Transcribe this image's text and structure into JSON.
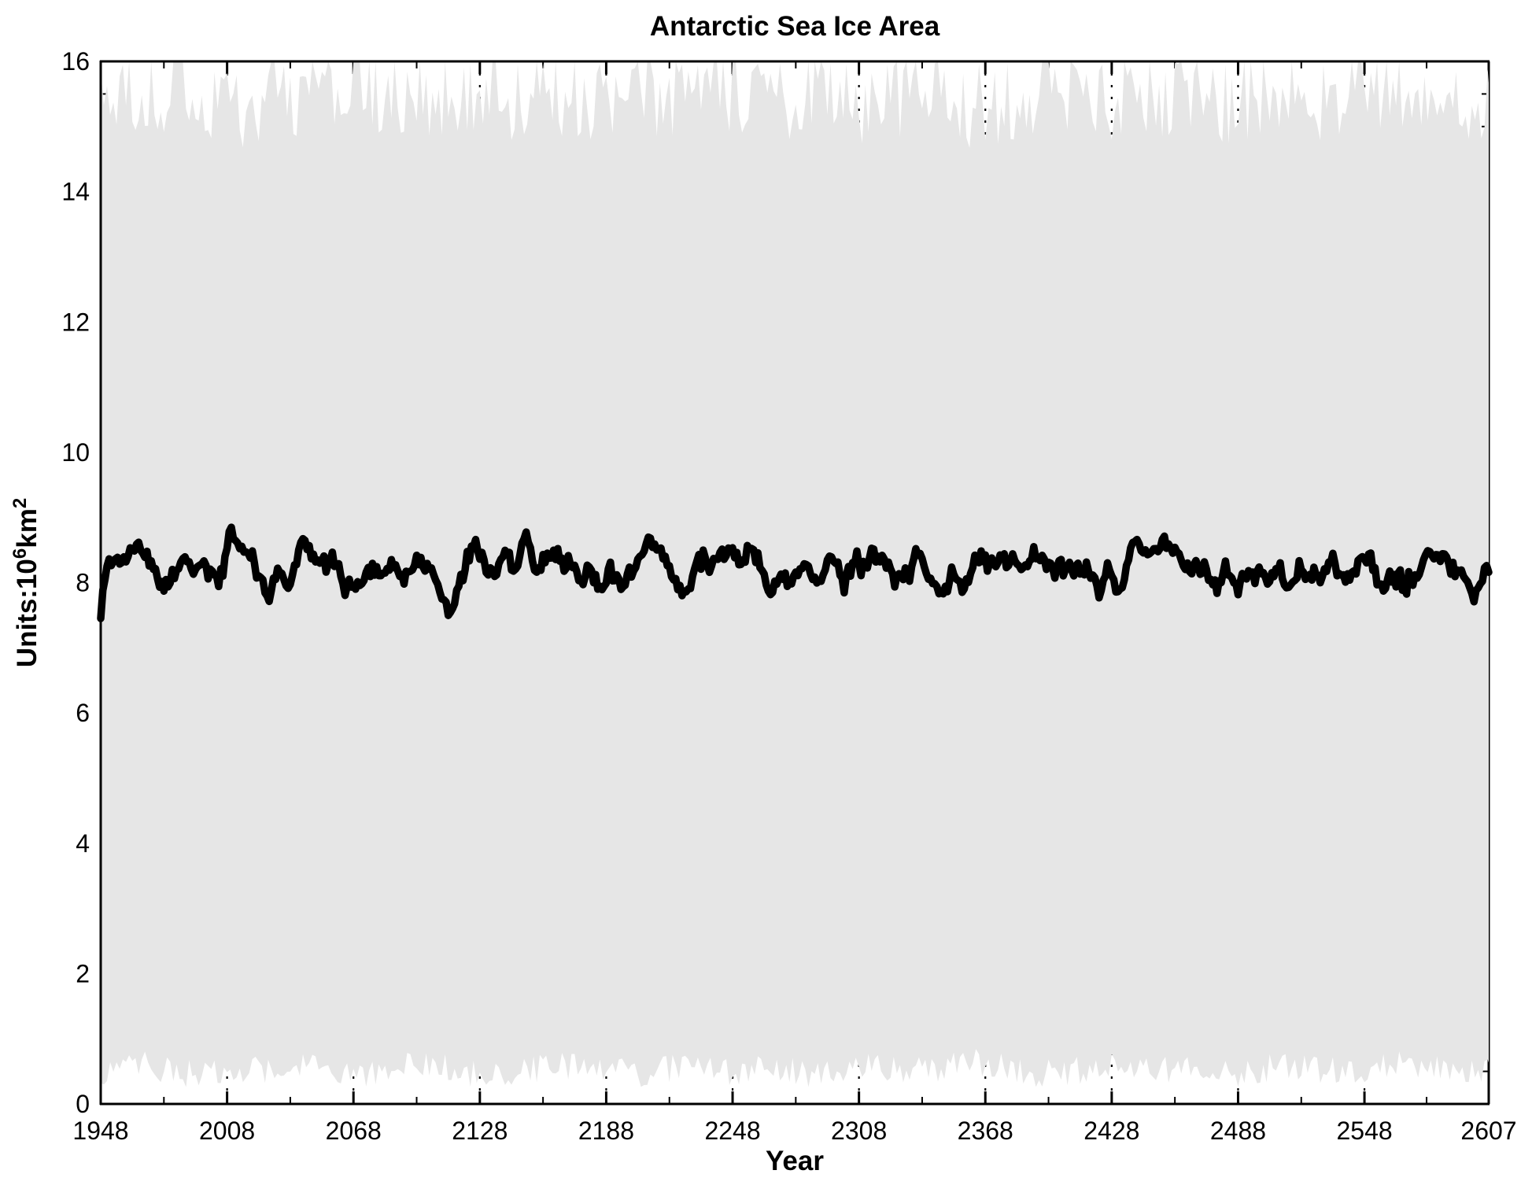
{
  "colors": {
    "background": "#FFFFFF",
    "band_fill": "#E6E6E6",
    "mean_line": "#000000",
    "axis": "#000000",
    "grid": "#000000"
  },
  "chart_data": {
    "type": "area",
    "title": "Antarctic Sea Ice Area",
    "xlabel": "Year",
    "ylabel": "Units:10^6km^2",
    "ylabel_parts": [
      {
        "t": "Units:10",
        "sup": false
      },
      {
        "t": "6",
        "sup": true
      },
      {
        "t": "km",
        "sup": false
      },
      {
        "t": "2",
        "sup": true
      }
    ],
    "x_range": [
      1948,
      2607
    ],
    "y_range": [
      0,
      16
    ],
    "x_major_ticks": [
      1948,
      2008,
      2068,
      2128,
      2188,
      2248,
      2308,
      2368,
      2428,
      2488,
      2548,
      2607
    ],
    "y_major_ticks": [
      0,
      2,
      4,
      6,
      8,
      10,
      12,
      14,
      16
    ],
    "x_minor_ticks": "midpoints-between-majors",
    "y_minor_step": 0.5,
    "grid": {
      "vertical_at_x_majors": true,
      "horizontal_at_y_majors": true,
      "style": "dotted"
    },
    "legend": null,
    "noise_seed": 20,
    "series": [
      {
        "name": "seasonal-maximum-envelope",
        "role": "band-top",
        "description": "upper edge of shaded min-max range, ~14.7 to 16",
        "x_start": 1948,
        "x_step": 20,
        "sample_step": 1.5,
        "smooth": 1,
        "jitter": 0.7,
        "clamp": [
          14.6,
          16
        ],
        "values": [
          15.5,
          15.4,
          15.55,
          15.3,
          15.5,
          15.45,
          15.6,
          15.35,
          15.5,
          15.6,
          15.4,
          15.5,
          15.3,
          15.55,
          15.45,
          15.5,
          15.35,
          15.6,
          15.4,
          15.5,
          15.45,
          15.3,
          15.55,
          15.5,
          15.4,
          15.5,
          15.6,
          15.35,
          15.5,
          15.45,
          15.55,
          15.4,
          15.5,
          15.45
        ]
      },
      {
        "name": "annual-mean-sea-ice-area",
        "role": "line",
        "description": "thick black annual mean line, fluctuates ~7.5 to 8.8 around mean 8.1",
        "line_width": 9.5,
        "x_start": 1948,
        "x_step": 20,
        "sample_step": 1,
        "smooth": 6,
        "jitter": 0.3,
        "jitter2": 0.07,
        "clamp": [
          7.45,
          8.85
        ],
        "values": [
          8.0,
          8.3,
          7.95,
          8.45,
          8.2,
          8.5,
          8.1,
          8.3,
          8.0,
          8.45,
          8.25,
          8.35,
          7.95,
          8.4,
          8.15,
          8.5,
          8.05,
          8.3,
          8.2,
          8.45,
          8.0,
          8.35,
          8.15,
          8.4,
          8.1,
          8.45,
          8.25,
          8.0,
          8.35,
          8.2,
          8.4,
          8.05,
          8.3,
          8.15
        ]
      },
      {
        "name": "seasonal-minimum-envelope",
        "role": "band-bottom",
        "description": "lower edge of shaded min-max range, ~0.3 to 0.8",
        "x_start": 1948,
        "x_step": 20,
        "sample_step": 1.5,
        "smooth": 1,
        "jitter": 0.22,
        "clamp": [
          0.26,
          0.85
        ],
        "values": [
          0.5,
          0.6,
          0.45,
          0.55,
          0.5,
          0.65,
          0.42,
          0.55,
          0.6,
          0.45,
          0.5,
          0.6,
          0.55,
          0.45,
          0.65,
          0.5,
          0.55,
          0.42,
          0.6,
          0.5,
          0.55,
          0.65,
          0.45,
          0.5,
          0.6,
          0.55,
          0.5,
          0.45,
          0.6,
          0.5,
          0.55,
          0.65,
          0.5,
          0.55
        ]
      }
    ]
  }
}
